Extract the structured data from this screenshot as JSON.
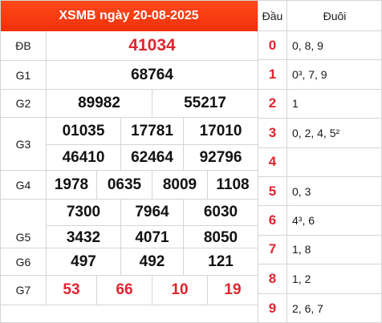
{
  "title": "XSMB ngày 20-08-2025",
  "prizes": {
    "db": {
      "label": "ĐB",
      "values": [
        "41034"
      ]
    },
    "g1": {
      "label": "G1",
      "values": [
        "68764"
      ]
    },
    "g2": {
      "label": "G2",
      "values": [
        "89982",
        "55217"
      ]
    },
    "g3": {
      "label": "G3",
      "values": [
        "01035",
        "17781",
        "17010",
        "46410",
        "62464",
        "92796"
      ]
    },
    "g4": {
      "label": "G4",
      "values": [
        "1978",
        "0635",
        "8009",
        "1108"
      ]
    },
    "g5": {
      "label": "G5",
      "values": [
        "7300",
        "7964",
        "6030",
        "3432",
        "4071",
        "8050"
      ]
    },
    "g6": {
      "label": "G6",
      "values": [
        "497",
        "492",
        "121"
      ]
    },
    "g7": {
      "label": "G7",
      "values": [
        "53",
        "66",
        "10",
        "19"
      ]
    }
  },
  "colors": {
    "header": "#f0310a",
    "red": "#e0242e",
    "grid": "#d5d5d5"
  },
  "loto": {
    "head_label": "Đầu",
    "tail_label": "Đuôi",
    "rows": [
      {
        "head": "0",
        "tail": "0, 8, 9"
      },
      {
        "head": "1",
        "tail": "0³, 7, 9"
      },
      {
        "head": "2",
        "tail": "1"
      },
      {
        "head": "3",
        "tail": "0, 2, 4, 5²"
      },
      {
        "head": "4",
        "tail": ""
      },
      {
        "head": "5",
        "tail": "0, 3"
      },
      {
        "head": "6",
        "tail": "4³, 6"
      },
      {
        "head": "7",
        "tail": "1, 8"
      },
      {
        "head": "8",
        "tail": "1, 2"
      },
      {
        "head": "9",
        "tail": "2, 6, 7"
      }
    ]
  }
}
